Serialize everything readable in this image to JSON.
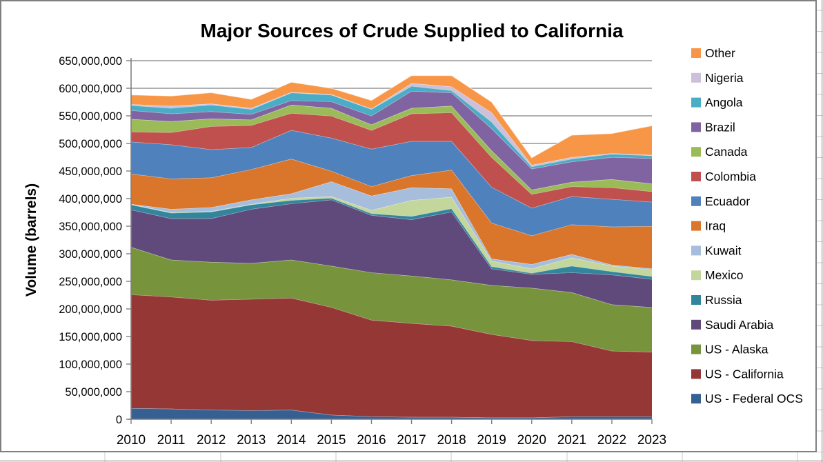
{
  "frame": {
    "chart_border_color": "#7F7F7F",
    "spreadsheet_line_color": "#C9C9C9"
  },
  "styles": {
    "grid_color": "#808080",
    "axis_color": "#808080",
    "band_separator_color": "#FFFFFF",
    "text_color": "#000000",
    "background": "#FFFFFF"
  },
  "chart_data": {
    "type": "area",
    "stacked": true,
    "title": "Major Sources of Crude Supplied to California",
    "xlabel": "",
    "ylabel": "Volume (barrels)",
    "unit": "barrels",
    "values_scale": 1000000,
    "grid": "horizontal",
    "legend_position": "right",
    "ylim": [
      0,
      650000000
    ],
    "y_tick_step": 50000000,
    "y_tick_labels": [
      "0",
      "50,000,000",
      "100,000,000",
      "150,000,000",
      "200,000,000",
      "250,000,000",
      "300,000,000",
      "350,000,000",
      "400,000,000",
      "450,000,000",
      "500,000,000",
      "550,000,000",
      "600,000,000",
      "650,000,000"
    ],
    "years": [
      2010,
      2011,
      2012,
      2013,
      2014,
      2015,
      2016,
      2017,
      2018,
      2019,
      2020,
      2021,
      2022,
      2023
    ],
    "legend_top_to_bottom": [
      "Other",
      "Nigeria",
      "Angola",
      "Brazil",
      "Canada",
      "Colombia",
      "Ecuador",
      "Iraq",
      "Kuwait",
      "Mexico",
      "Russia",
      "Saudi Arabia",
      "US - Alaska",
      "US - California",
      "US - Federal OCS"
    ],
    "series": [
      {
        "name": "US - Federal OCS",
        "color": "#376092",
        "values_million_barrels": [
          20,
          19,
          17,
          16,
          17,
          8,
          5,
          4,
          4,
          3,
          3,
          5,
          5,
          5
        ]
      },
      {
        "name": "US - California",
        "color": "#953735",
        "values_million_barrels": [
          206,
          203,
          199,
          202,
          203,
          195,
          175,
          170,
          165,
          151,
          140,
          136,
          119,
          117
        ]
      },
      {
        "name": "US - Alaska",
        "color": "#77933C",
        "values_million_barrels": [
          86,
          67,
          69,
          65,
          69,
          75,
          86,
          86,
          84,
          89,
          95,
          89,
          84,
          81
        ]
      },
      {
        "name": "Saudi Arabia",
        "color": "#604A7B",
        "values_million_barrels": [
          68,
          75,
          79,
          98,
          102,
          120,
          104,
          102,
          123,
          30,
          25,
          36,
          54,
          51
        ]
      },
      {
        "name": "Russia",
        "color": "#31859C",
        "values_million_barrels": [
          9,
          10,
          12,
          8,
          6,
          3,
          3,
          6,
          6,
          4,
          2,
          12,
          6,
          5
        ]
      },
      {
        "name": "Mexico",
        "color": "#C3D69B",
        "values_million_barrels": [
          1,
          1,
          1,
          1,
          4,
          3,
          6,
          29,
          21,
          10,
          8,
          15,
          10,
          12
        ]
      },
      {
        "name": "Kuwait",
        "color": "#A7BDDC",
        "values_million_barrels": [
          0,
          6,
          7,
          8,
          8,
          27,
          26,
          23,
          15,
          4,
          8,
          6,
          2,
          2
        ]
      },
      {
        "name": "Iraq",
        "color": "#D9762B",
        "values_million_barrels": [
          55,
          55,
          54,
          55,
          63,
          19,
          17,
          22,
          34,
          65,
          52,
          54,
          69,
          77
        ]
      },
      {
        "name": "Ecuador",
        "color": "#4F81BD",
        "values_million_barrels": [
          58,
          62,
          51,
          40,
          52,
          60,
          68,
          62,
          52,
          65,
          50,
          51,
          50,
          44
        ]
      },
      {
        "name": "Colombia",
        "color": "#C0504D",
        "values_million_barrels": [
          18,
          22,
          42,
          40,
          31,
          40,
          34,
          50,
          52,
          54,
          25,
          18,
          21,
          19
        ]
      },
      {
        "name": "Canada",
        "color": "#9BBB59",
        "values_million_barrels": [
          23,
          20,
          14,
          10,
          15,
          14,
          10,
          10,
          12,
          12,
          8,
          8,
          15,
          14
        ]
      },
      {
        "name": "Brazil",
        "color": "#8064A2",
        "values_million_barrels": [
          16,
          14,
          13,
          10,
          8,
          12,
          16,
          31,
          24,
          40,
          38,
          37,
          40,
          46
        ]
      },
      {
        "name": "Angola",
        "color": "#4BACC6",
        "values_million_barrels": [
          9,
          10,
          12,
          9,
          14,
          12,
          12,
          9,
          4,
          12,
          4,
          5,
          6,
          5
        ]
      },
      {
        "name": "Nigeria",
        "color": "#CCC0DA",
        "values_million_barrels": [
          2,
          4,
          2,
          2,
          1,
          1,
          1,
          5,
          7,
          17,
          3,
          3,
          1,
          1
        ]
      },
      {
        "name": "Other",
        "color": "#F79646",
        "values_million_barrels": [
          17,
          18,
          20,
          16,
          18,
          11,
          15,
          14,
          20,
          19,
          13,
          40,
          36,
          53
        ]
      }
    ]
  }
}
